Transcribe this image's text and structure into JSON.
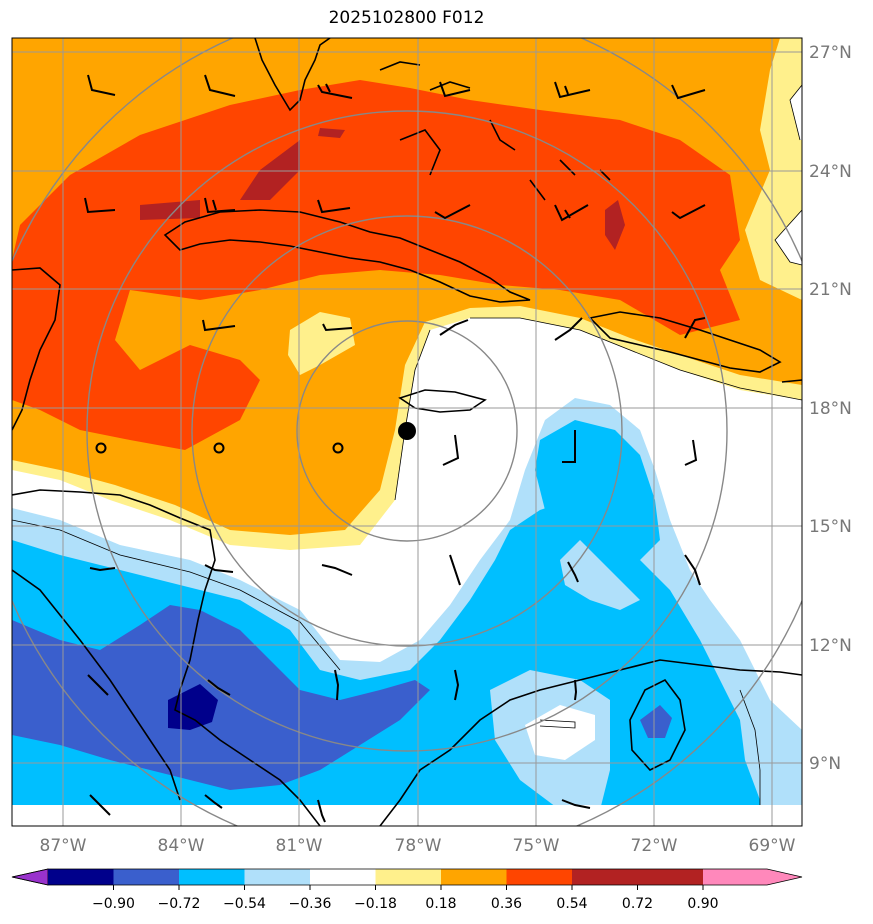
{
  "title": "2025102800 F012",
  "map": {
    "lon_labels": [
      "87°W",
      "84°W",
      "81°W",
      "78°W",
      "75°W",
      "72°W",
      "69°W"
    ],
    "lat_labels": [
      "27°N",
      "24°N",
      "21°N",
      "18°N",
      "15°N",
      "12°N",
      "9°N"
    ],
    "center_marker": {
      "lon": -78.2,
      "lat": 17.3
    },
    "circle_markers": [
      {
        "lon": -85.0,
        "lat": 17.0
      },
      {
        "lon": -82.0,
        "lat": 17.0
      },
      {
        "lon": -79.0,
        "lat": 17.0
      }
    ]
  },
  "colorbar": {
    "ticks": [
      "−0.90",
      "−0.72",
      "−0.54",
      "−0.36",
      "−0.18",
      "0.18",
      "0.36",
      "0.54",
      "0.72",
      "0.90"
    ],
    "colors": [
      "#9932cc",
      "#00008b",
      "#3a5fcd",
      "#00bfff",
      "#b0e0fa",
      "#ffffff",
      "#fff08c",
      "#ffa500",
      "#ff4500",
      "#b22222",
      "#ff88bb"
    ]
  },
  "colors": {
    "c_red": "#ff4500",
    "c_dred": "#b22222",
    "c_orange": "#ffa500",
    "c_yellow": "#fff08c",
    "c_lblue": "#b0e0fa",
    "c_blue": "#00bfff",
    "c_mblue": "#3a5fcd",
    "c_navy": "#00008b"
  }
}
